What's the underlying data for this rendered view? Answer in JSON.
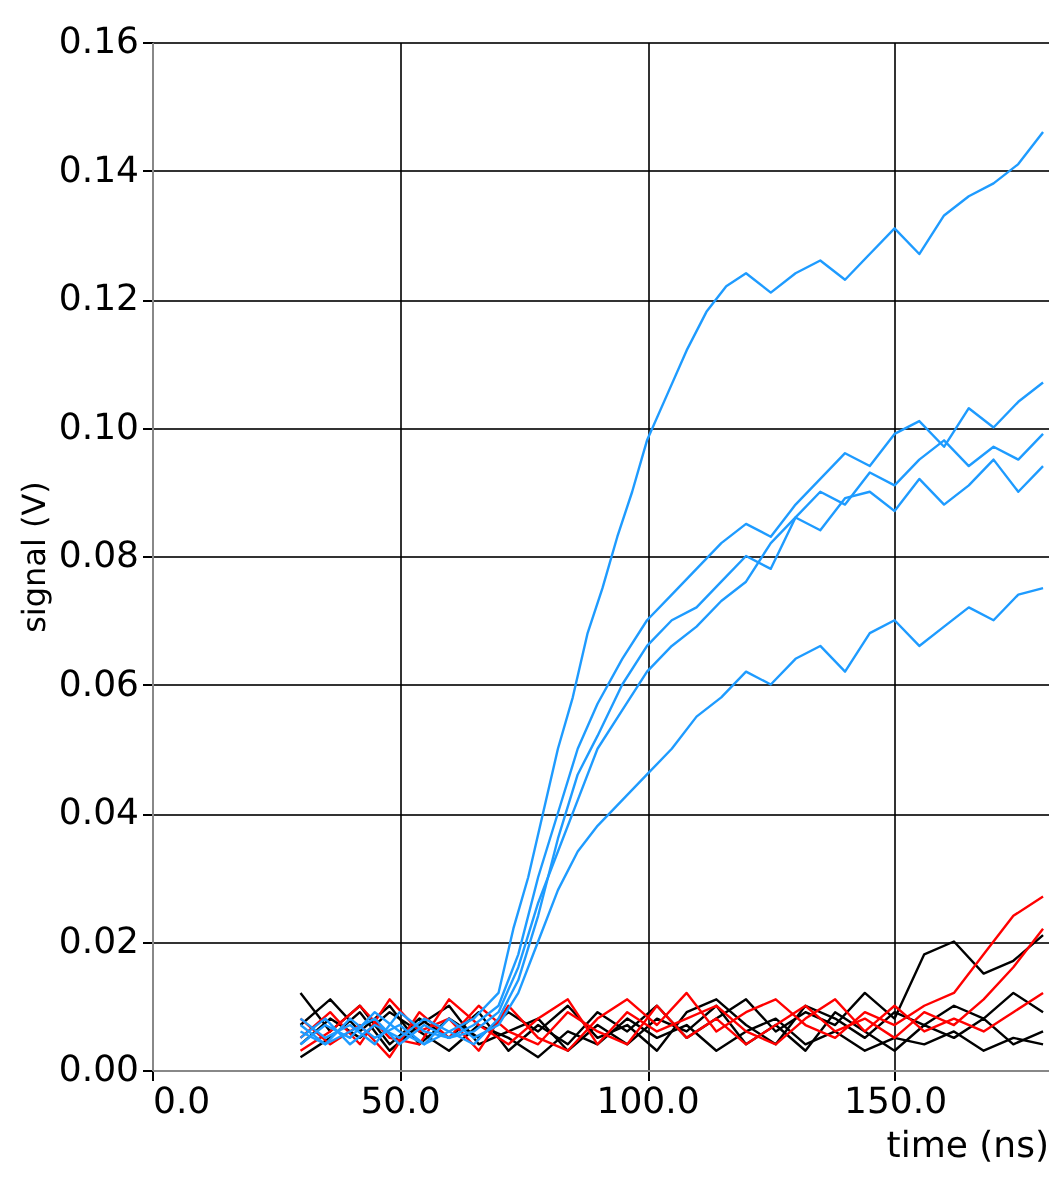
{
  "chart_data": {
    "type": "line",
    "xlabel": "time (ns)",
    "ylabel": "signal (V)",
    "xlim": [
      0,
      181
    ],
    "ylim": [
      0,
      0.16
    ],
    "xticks": [
      {
        "value": 0,
        "label": "0.0"
      },
      {
        "value": 50,
        "label": "50.0"
      },
      {
        "value": 100,
        "label": "100.0"
      },
      {
        "value": 150,
        "label": "150.0"
      }
    ],
    "yticks": [
      {
        "value": 0,
        "label": "0.00"
      },
      {
        "value": 0.02,
        "label": "0.02"
      },
      {
        "value": 0.04,
        "label": "0.04"
      },
      {
        "value": 0.06,
        "label": "0.06"
      },
      {
        "value": 0.08,
        "label": "0.08"
      },
      {
        "value": 0.1,
        "label": "0.10"
      },
      {
        "value": 0.12,
        "label": "0.12"
      },
      {
        "value": 0.14,
        "label": "0.14"
      },
      {
        "value": 0.16,
        "label": "0.16"
      }
    ],
    "grid": true,
    "legend": false,
    "series": [
      {
        "color": "#000000",
        "x": [
          30,
          36,
          42,
          48,
          54,
          60,
          66,
          72,
          78,
          84,
          90,
          96,
          102,
          108,
          114,
          120,
          126,
          132,
          138,
          144,
          150,
          156,
          162,
          168,
          174,
          180
        ],
        "values": [
          0.012,
          0.006,
          0.01,
          0.004,
          0.008,
          0.005,
          0.009,
          0.003,
          0.007,
          0.004,
          0.009,
          0.006,
          0.01,
          0.005,
          0.008,
          0.011,
          0.006,
          0.009,
          0.007,
          0.012,
          0.008,
          0.018,
          0.02,
          0.015,
          0.017,
          0.021
        ]
      },
      {
        "color": "#000000",
        "x": [
          30,
          36,
          42,
          48,
          54,
          60,
          66,
          72,
          78,
          84,
          90,
          96,
          102,
          108,
          114,
          120,
          126,
          132,
          138,
          144,
          150,
          156,
          162,
          168,
          174,
          180
        ],
        "values": [
          0.004,
          0.008,
          0.005,
          0.009,
          0.006,
          0.003,
          0.007,
          0.005,
          0.002,
          0.006,
          0.004,
          0.008,
          0.005,
          0.007,
          0.003,
          0.006,
          0.008,
          0.004,
          0.006,
          0.003,
          0.005,
          0.004,
          0.006,
          0.003,
          0.005,
          0.004
        ]
      },
      {
        "color": "#000000",
        "x": [
          30,
          36,
          42,
          48,
          54,
          60,
          66,
          72,
          78,
          84,
          90,
          96,
          102,
          108,
          114,
          120,
          126,
          132,
          138,
          144,
          150,
          156,
          162,
          168,
          174,
          180
        ],
        "values": [
          0.007,
          0.011,
          0.006,
          0.01,
          0.004,
          0.008,
          0.005,
          0.009,
          0.006,
          0.01,
          0.005,
          0.007,
          0.003,
          0.009,
          0.011,
          0.007,
          0.004,
          0.01,
          0.008,
          0.005,
          0.009,
          0.007,
          0.01,
          0.008,
          0.012,
          0.009
        ]
      },
      {
        "color": "#000000",
        "x": [
          30,
          36,
          42,
          48,
          54,
          60,
          66,
          72,
          78,
          84,
          90,
          96,
          102,
          108,
          114,
          120,
          126,
          132,
          138,
          144,
          150,
          156,
          162,
          168,
          174,
          180
        ],
        "values": [
          0.002,
          0.005,
          0.009,
          0.003,
          0.007,
          0.01,
          0.004,
          0.006,
          0.008,
          0.003,
          0.007,
          0.004,
          0.008,
          0.006,
          0.01,
          0.004,
          0.007,
          0.003,
          0.009,
          0.006,
          0.003,
          0.007,
          0.005,
          0.008,
          0.004,
          0.006
        ]
      },
      {
        "color": "#ff0000",
        "x": [
          30,
          36,
          42,
          48,
          54,
          60,
          66,
          72,
          78,
          84,
          90,
          96,
          102,
          108,
          114,
          120,
          126,
          132,
          138,
          144,
          150,
          156,
          162,
          168,
          174,
          180
        ],
        "values": [
          0.005,
          0.009,
          0.004,
          0.011,
          0.006,
          0.008,
          0.003,
          0.01,
          0.005,
          0.003,
          0.008,
          0.011,
          0.007,
          0.012,
          0.006,
          0.009,
          0.011,
          0.007,
          0.005,
          0.009,
          0.007,
          0.01,
          0.012,
          0.018,
          0.024,
          0.027
        ]
      },
      {
        "color": "#ff0000",
        "x": [
          30,
          36,
          42,
          48,
          54,
          60,
          66,
          72,
          78,
          84,
          90,
          96,
          102,
          108,
          114,
          120,
          126,
          132,
          138,
          144,
          150,
          156,
          162,
          168,
          174,
          180
        ],
        "values": [
          0.008,
          0.004,
          0.007,
          0.002,
          0.009,
          0.005,
          0.01,
          0.006,
          0.004,
          0.009,
          0.006,
          0.004,
          0.01,
          0.005,
          0.008,
          0.004,
          0.007,
          0.01,
          0.006,
          0.008,
          0.005,
          0.009,
          0.007,
          0.011,
          0.016,
          0.022
        ]
      },
      {
        "color": "#ff0000",
        "x": [
          30,
          36,
          42,
          48,
          54,
          60,
          66,
          72,
          78,
          84,
          90,
          96,
          102,
          108,
          114,
          120,
          126,
          132,
          138,
          144,
          150,
          156,
          162,
          168,
          174,
          180
        ],
        "values": [
          0.003,
          0.006,
          0.01,
          0.005,
          0.004,
          0.011,
          0.007,
          0.004,
          0.008,
          0.011,
          0.004,
          0.009,
          0.006,
          0.008,
          0.01,
          0.006,
          0.004,
          0.008,
          0.011,
          0.006,
          0.01,
          0.006,
          0.008,
          0.006,
          0.009,
          0.012
        ]
      },
      {
        "color": "#1e9bff",
        "x": [
          30,
          35,
          40,
          45,
          50,
          55,
          60,
          65,
          70,
          73,
          76,
          79,
          82,
          85,
          88,
          91,
          94,
          97,
          100,
          104,
          108,
          112,
          116,
          120,
          125,
          130,
          135,
          140,
          145,
          150,
          155,
          160,
          165,
          170,
          175,
          180
        ],
        "values": [
          0.006,
          0.004,
          0.008,
          0.005,
          0.007,
          0.004,
          0.006,
          0.008,
          0.012,
          0.022,
          0.03,
          0.04,
          0.05,
          0.058,
          0.068,
          0.075,
          0.083,
          0.09,
          0.098,
          0.105,
          0.112,
          0.118,
          0.122,
          0.124,
          0.121,
          0.124,
          0.126,
          0.123,
          0.127,
          0.131,
          0.127,
          0.133,
          0.136,
          0.138,
          0.141,
          0.146
        ]
      },
      {
        "color": "#1e9bff",
        "x": [
          30,
          35,
          40,
          45,
          50,
          55,
          60,
          65,
          70,
          74,
          78,
          82,
          86,
          90,
          95,
          100,
          105,
          110,
          115,
          120,
          125,
          130,
          135,
          140,
          145,
          150,
          155,
          160,
          165,
          170,
          175,
          180
        ],
        "values": [
          0.008,
          0.005,
          0.007,
          0.004,
          0.009,
          0.006,
          0.005,
          0.007,
          0.01,
          0.018,
          0.03,
          0.04,
          0.05,
          0.057,
          0.064,
          0.07,
          0.074,
          0.078,
          0.082,
          0.085,
          0.083,
          0.088,
          0.092,
          0.096,
          0.094,
          0.099,
          0.101,
          0.097,
          0.103,
          0.1,
          0.104,
          0.107
        ]
      },
      {
        "color": "#1e9bff",
        "x": [
          30,
          35,
          40,
          45,
          50,
          55,
          60,
          65,
          70,
          74,
          78,
          82,
          86,
          90,
          95,
          100,
          105,
          110,
          115,
          120,
          125,
          130,
          135,
          140,
          145,
          150,
          155,
          160,
          165,
          170,
          175,
          180
        ],
        "values": [
          0.005,
          0.008,
          0.004,
          0.007,
          0.005,
          0.008,
          0.006,
          0.004,
          0.008,
          0.014,
          0.024,
          0.036,
          0.046,
          0.052,
          0.06,
          0.066,
          0.07,
          0.072,
          0.076,
          0.08,
          0.078,
          0.086,
          0.09,
          0.088,
          0.093,
          0.091,
          0.095,
          0.098,
          0.094,
          0.097,
          0.095,
          0.099
        ]
      },
      {
        "color": "#1e9bff",
        "x": [
          30,
          35,
          40,
          45,
          50,
          55,
          60,
          65,
          70,
          74,
          78,
          82,
          86,
          90,
          95,
          100,
          105,
          110,
          115,
          120,
          125,
          130,
          135,
          140,
          145,
          150,
          155,
          160,
          165,
          170,
          175,
          180
        ],
        "values": [
          0.007,
          0.004,
          0.006,
          0.008,
          0.004,
          0.007,
          0.005,
          0.006,
          0.009,
          0.016,
          0.026,
          0.034,
          0.042,
          0.05,
          0.056,
          0.062,
          0.066,
          0.069,
          0.073,
          0.076,
          0.082,
          0.086,
          0.084,
          0.089,
          0.09,
          0.087,
          0.092,
          0.088,
          0.091,
          0.095,
          0.09,
          0.094
        ]
      },
      {
        "color": "#1e9bff",
        "x": [
          30,
          35,
          40,
          45,
          50,
          55,
          60,
          65,
          70,
          74,
          78,
          82,
          86,
          90,
          95,
          100,
          105,
          110,
          115,
          120,
          125,
          130,
          135,
          140,
          145,
          150,
          155,
          160,
          165,
          170,
          175,
          180
        ],
        "values": [
          0.004,
          0.007,
          0.005,
          0.009,
          0.006,
          0.004,
          0.008,
          0.005,
          0.007,
          0.012,
          0.02,
          0.028,
          0.034,
          0.038,
          0.042,
          0.046,
          0.05,
          0.055,
          0.058,
          0.062,
          0.06,
          0.064,
          0.066,
          0.062,
          0.068,
          0.07,
          0.066,
          0.069,
          0.072,
          0.07,
          0.074,
          0.075
        ]
      }
    ]
  }
}
